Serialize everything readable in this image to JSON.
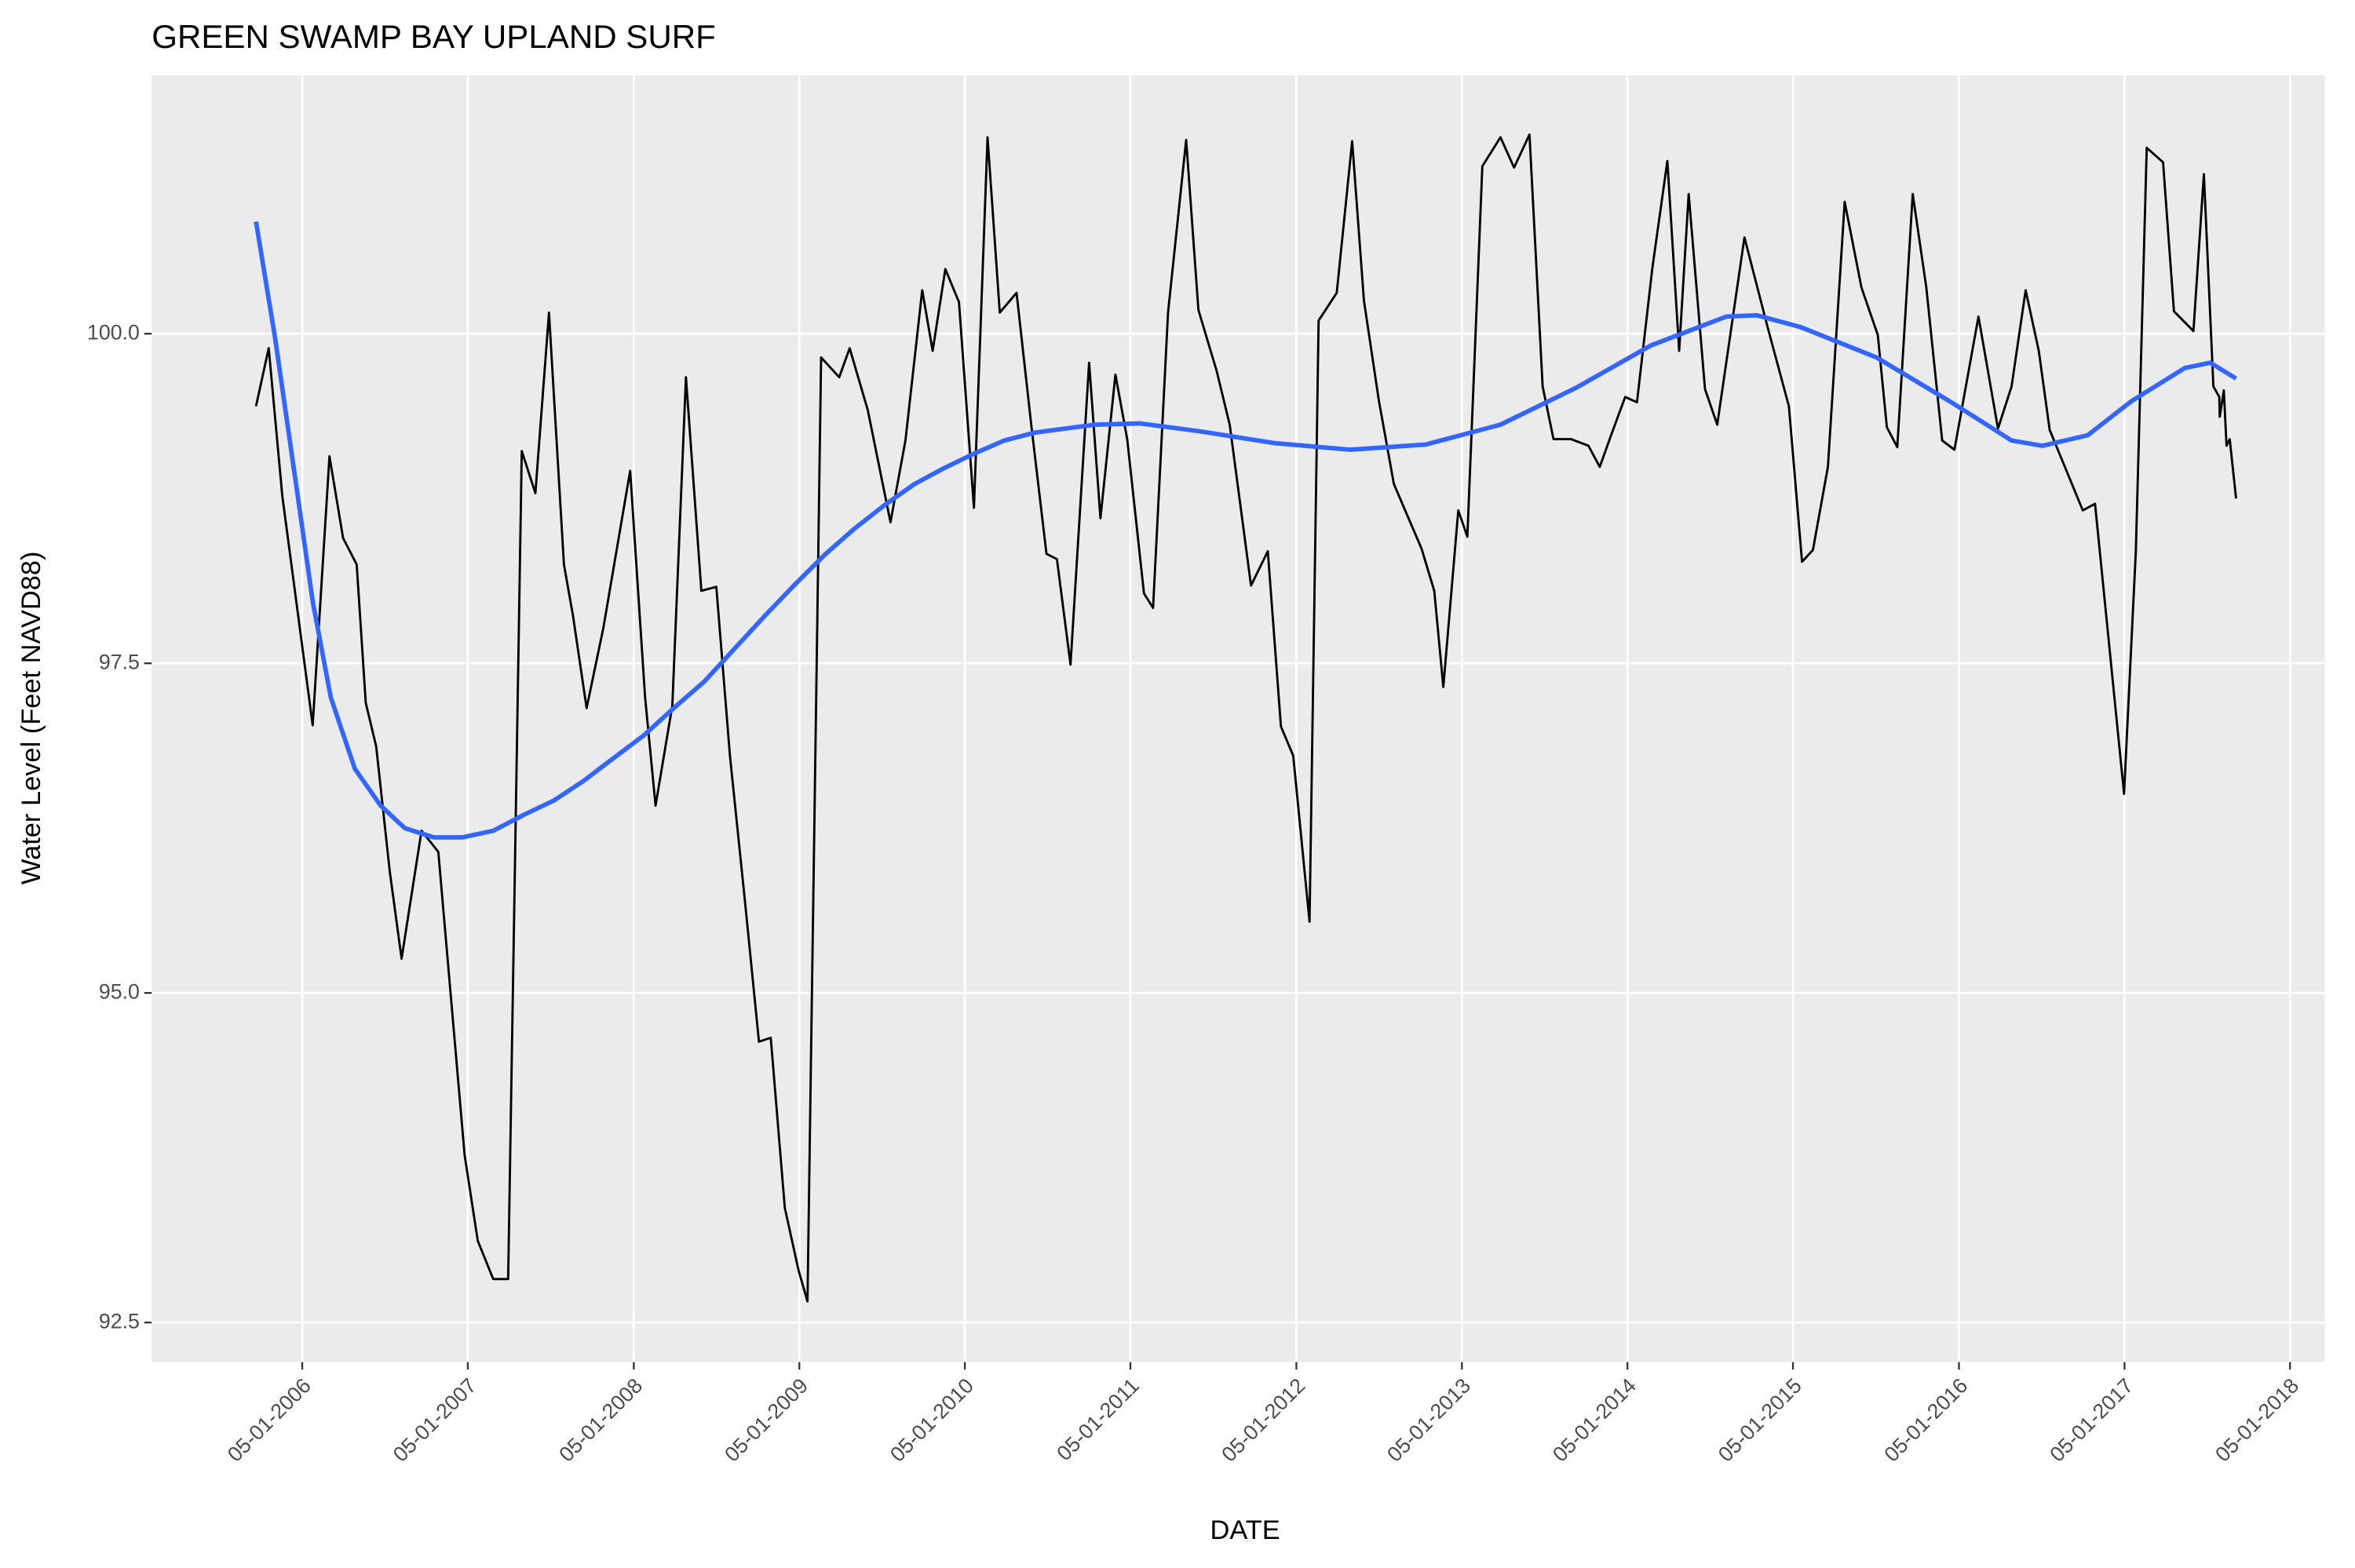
{
  "chart_data": {
    "type": "line",
    "title": "GREEN SWAMP BAY UPLAND SURF",
    "x_label": "DATE",
    "y_label": "Water Level (Feet NAVD88)",
    "xlim": [
      "06-03-2005",
      "07-17-2018"
    ],
    "ylim": [
      92.2,
      101.96
    ],
    "xticks": [
      "05-01-2006",
      "05-01-2007",
      "05-01-2008",
      "05-01-2009",
      "05-01-2010",
      "05-01-2011",
      "05-01-2012",
      "05-01-2013",
      "05-01-2014",
      "05-01-2015",
      "05-01-2016",
      "05-01-2017",
      "05-01-2018"
    ],
    "yticks": [
      92.5,
      {
        "value": 95,
        "label": "95.0"
      },
      97.5,
      {
        "value": 100,
        "label": "100.0"
      }
    ],
    "grid": true,
    "series": [
      {
        "color": "#000000",
        "width": 1.5,
        "x": [
          "01-19-2006",
          "02-16-2006",
          "03-18-2006",
          "05-24-2006",
          "06-30-2006",
          "07-30-2006",
          "08-29-2006",
          "09-18-2006",
          "10-11-2006",
          "11-10-2006",
          "12-06-2006",
          "01-19-2007",
          "02-25-2007",
          "04-24-2007",
          "05-23-2007",
          "06-26-2007",
          "07-29-2007",
          "08-28-2007",
          "09-27-2007",
          "10-27-2007",
          "11-29-2007",
          "12-19-2007",
          "01-18-2008",
          "02-24-2008",
          "04-23-2008",
          "05-26-2008",
          "06-18-2008",
          "07-25-2008",
          "08-24-2008",
          "09-27-2008",
          "10-30-2008",
          "11-29-2008",
          "01-01-2009",
          "02-01-2009",
          "02-27-2009",
          "03-30-2009",
          "04-29-2009",
          "05-19-2009",
          "06-18-2009",
          "07-28-2009",
          "08-20-2009",
          "09-29-2009",
          "11-18-2009",
          "12-21-2009",
          "01-27-2010",
          "02-19-2010",
          "03-19-2010",
          "04-18-2010",
          "05-21-2010",
          "06-20-2010",
          "07-17-2010",
          "08-23-2010",
          "09-25-2010",
          "10-28-2010",
          "11-20-2010",
          "12-20-2010",
          "01-30-2011",
          "02-24-2011",
          "03-29-2011",
          "04-24-2011",
          "05-31-2011",
          "06-20-2011",
          "07-23-2011",
          "09-01-2011",
          "09-28-2011",
          "11-07-2011",
          "12-06-2011",
          "01-22-2012",
          "02-28-2012",
          "03-28-2012",
          "04-24-2012",
          "05-30-2012",
          "06-19-2012",
          "07-29-2012",
          "09-01-2012",
          "09-27-2012",
          "10-30-2012",
          "12-02-2012",
          "02-01-2013",
          "03-01-2013",
          "03-21-2013",
          "04-23-2013",
          "05-13-2013",
          "06-15-2013",
          "07-25-2013",
          "08-24-2013",
          "09-27-2013",
          "10-26-2013",
          "11-19-2013",
          "12-28-2013",
          "02-04-2014",
          "03-01-2014",
          "03-27-2014",
          "04-26-2014",
          "05-22-2014",
          "06-25-2014",
          "07-28-2014",
          "08-23-2014",
          "09-13-2014",
          "10-19-2014",
          "11-15-2014",
          "01-14-2015",
          "03-06-2015",
          "04-22-2015",
          "05-21-2015",
          "06-14-2015",
          "07-17-2015",
          "08-23-2015",
          "09-29-2015",
          "11-04-2015",
          "11-24-2015",
          "12-17-2015",
          "01-20-2016",
          "02-19-2016",
          "03-25-2016",
          "04-21-2016",
          "06-13-2016",
          "07-26-2016",
          "08-25-2016",
          "09-25-2016",
          "10-24-2016",
          "11-17-2016",
          "01-29-2017",
          "02-25-2017",
          "04-30-2017",
          "05-26-2017",
          "06-19-2017",
          "07-25-2017",
          "08-18-2017",
          "09-30-2017",
          "10-23-2017",
          "11-13-2017",
          "11-26-2017",
          "11-27-2017",
          "12-06-2017",
          "12-12-2017",
          "12-19-2017",
          "01-02-2018"
        ],
        "values": [
          99.45,
          99.89,
          98.77,
          97.03,
          99.07,
          98.45,
          98.25,
          97.2,
          96.87,
          95.92,
          95.26,
          96.23,
          96.07,
          93.77,
          93.12,
          92.83,
          92.83,
          99.11,
          98.79,
          100.16,
          98.25,
          97.86,
          97.16,
          97.77,
          98.96,
          97.24,
          96.42,
          97.18,
          99.67,
          98.05,
          98.08,
          96.8,
          95.7,
          94.63,
          94.66,
          93.37,
          92.9,
          92.66,
          99.82,
          99.67,
          99.89,
          99.42,
          98.57,
          99.19,
          100.33,
          99.87,
          100.49,
          100.24,
          98.68,
          101.49,
          100.16,
          100.31,
          99.29,
          98.33,
          98.29,
          97.49,
          99.78,
          98.6,
          99.69,
          99.2,
          98.03,
          97.92,
          100.16,
          101.47,
          100.18,
          99.72,
          99.31,
          98.09,
          98.35,
          97.02,
          96.8,
          95.54,
          100.1,
          100.31,
          101.46,
          100.25,
          99.49,
          98.86,
          98.37,
          98.05,
          97.32,
          98.66,
          98.46,
          101.27,
          101.49,
          101.26,
          101.51,
          99.6,
          99.2,
          99.2,
          99.15,
          98.99,
          99.24,
          99.52,
          99.48,
          100.5,
          101.31,
          99.87,
          101.06,
          99.58,
          99.31,
          100.73,
          100.05,
          99.45,
          98.27,
          98.36,
          98.99,
          101.0,
          100.35,
          99.99,
          99.29,
          99.14,
          101.06,
          100.35,
          99.19,
          99.12,
          100.13,
          99.28,
          99.6,
          100.33,
          99.87,
          99.27,
          98.66,
          98.71,
          96.51,
          98.35,
          101.41,
          101.3,
          100.17,
          100.02,
          101.21,
          99.6,
          99.52,
          99.37,
          99.57,
          99.15,
          99.2,
          98.75
        ]
      },
      {
        "color": "#3366ff",
        "width": 3,
        "x": [
          "01-19-2006",
          "03-02-2006",
          "04-21-2006",
          "05-24-2006",
          "07-03-2006",
          "08-25-2006",
          "10-21-2006",
          "12-13-2006",
          "02-15-2007",
          "04-20-2007",
          "06-26-2007",
          "09-01-2007",
          "11-07-2007",
          "01-12-2008",
          "03-17-2008",
          "05-22-2008",
          "07-28-2008",
          "10-03-2008",
          "12-09-2008",
          "02-14-2009",
          "04-19-2009",
          "06-25-2009",
          "08-30-2009",
          "11-05-2009",
          "01-10-2010",
          "03-16-2010",
          "05-21-2010",
          "07-27-2010",
          "10-02-2010",
          "12-07-2010",
          "02-12-2011",
          "05-21-2011",
          "10-01-2011",
          "03-14-2012",
          "08-28-2012",
          "02-11-2013",
          "07-25-2013",
          "01-08-2014",
          "06-21-2014",
          "12-05-2014",
          "02-10-2015",
          "05-18-2015",
          "11-01-2015",
          "04-14-2016",
          "08-25-2016",
          "11-01-2016",
          "02-09-2017",
          "05-17-2017",
          "09-11-2017",
          "11-06-2017",
          "01-02-2018"
        ],
        "values": [
          100.85,
          99.97,
          98.77,
          97.97,
          97.24,
          96.7,
          96.42,
          96.25,
          96.18,
          96.18,
          96.23,
          96.35,
          96.46,
          96.61,
          96.78,
          96.95,
          97.16,
          97.36,
          97.61,
          97.86,
          98.09,
          98.32,
          98.52,
          98.7,
          98.86,
          98.98,
          99.09,
          99.19,
          99.25,
          99.28,
          99.31,
          99.32,
          99.26,
          99.17,
          99.12,
          99.16,
          99.31,
          99.59,
          99.91,
          100.13,
          100.14,
          100.05,
          99.82,
          99.48,
          99.19,
          99.15,
          99.23,
          99.49,
          99.74,
          99.78,
          99.66
        ]
      }
    ]
  }
}
